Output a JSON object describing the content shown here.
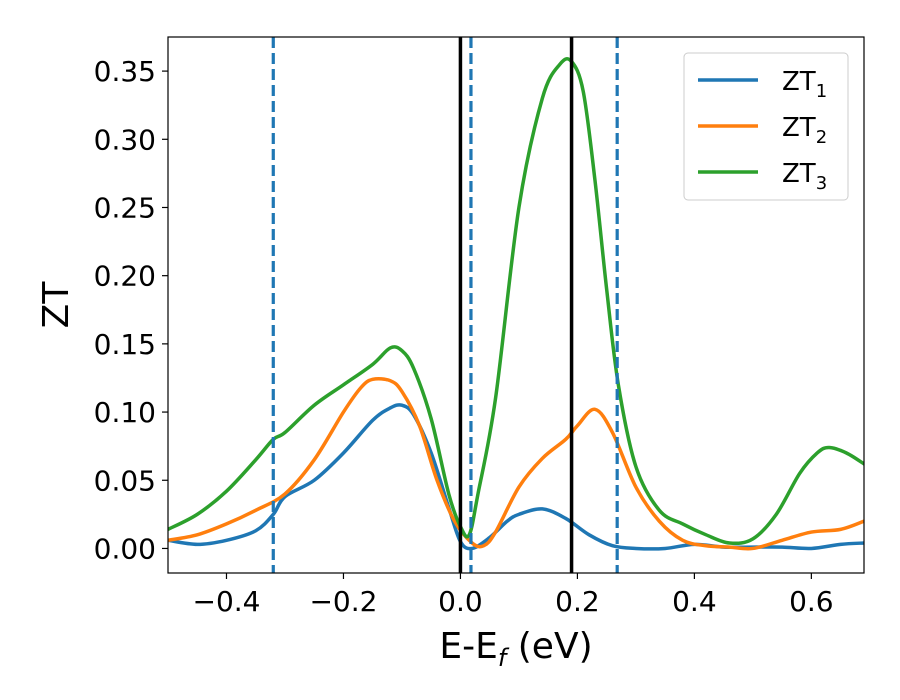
{
  "chart_data": {
    "type": "line",
    "title": "",
    "xlabel": {
      "base": "E-E",
      "sub": "f",
      "unit": " (eV)"
    },
    "ylabel": "ZT",
    "xlim": [
      -0.5,
      0.69
    ],
    "ylim": [
      -0.018,
      0.375
    ],
    "x_ticks": [
      -0.4,
      -0.2,
      0.0,
      0.2,
      0.4,
      0.6
    ],
    "x_tick_labels": [
      "−0.4",
      "−0.2",
      "0.0",
      "0.2",
      "0.4",
      "0.6"
    ],
    "y_ticks": [
      0.0,
      0.05,
      0.1,
      0.15,
      0.2,
      0.25,
      0.3,
      0.35
    ],
    "y_tick_labels": [
      "0.00",
      "0.05",
      "0.10",
      "0.15",
      "0.20",
      "0.25",
      "0.30",
      "0.35"
    ],
    "grid": false,
    "legend_position": "top-right",
    "series": [
      {
        "name": "ZT",
        "sub": "1",
        "color": "#1f77b4",
        "x": [
          -0.5,
          -0.45,
          -0.4,
          -0.35,
          -0.32,
          -0.3,
          -0.25,
          -0.2,
          -0.15,
          -0.12,
          -0.1,
          -0.08,
          -0.05,
          -0.02,
          0.0,
          0.02,
          0.05,
          0.08,
          0.1,
          0.14,
          0.18,
          0.22,
          0.26,
          0.3,
          0.35,
          0.4,
          0.45,
          0.5,
          0.55,
          0.6,
          0.65,
          0.69
        ],
        "y": [
          0.006,
          0.003,
          0.006,
          0.013,
          0.025,
          0.038,
          0.05,
          0.07,
          0.094,
          0.103,
          0.105,
          0.098,
          0.07,
          0.03,
          0.005,
          0.0,
          0.008,
          0.02,
          0.025,
          0.029,
          0.022,
          0.01,
          0.002,
          0.0,
          0.0,
          0.003,
          0.001,
          0.001,
          0.001,
          0.0,
          0.003,
          0.004
        ]
      },
      {
        "name": "ZT",
        "sub": "2",
        "color": "#ff7f0e",
        "x": [
          -0.5,
          -0.45,
          -0.4,
          -0.35,
          -0.3,
          -0.25,
          -0.2,
          -0.17,
          -0.15,
          -0.12,
          -0.1,
          -0.07,
          -0.04,
          -0.01,
          0.02,
          0.04,
          0.06,
          0.1,
          0.14,
          0.18,
          0.2,
          0.23,
          0.26,
          0.3,
          0.34,
          0.38,
          0.42,
          0.46,
          0.5,
          0.55,
          0.6,
          0.65,
          0.69
        ],
        "y": [
          0.006,
          0.01,
          0.018,
          0.028,
          0.04,
          0.065,
          0.1,
          0.118,
          0.124,
          0.123,
          0.115,
          0.09,
          0.05,
          0.02,
          0.004,
          0.002,
          0.012,
          0.045,
          0.066,
          0.08,
          0.09,
          0.102,
          0.085,
          0.045,
          0.02,
          0.006,
          0.002,
          0.001,
          0.0,
          0.006,
          0.012,
          0.014,
          0.02
        ]
      },
      {
        "name": "ZT",
        "sub": "3",
        "color": "#2ca02c",
        "x": [
          -0.5,
          -0.45,
          -0.4,
          -0.35,
          -0.32,
          -0.3,
          -0.25,
          -0.2,
          -0.15,
          -0.12,
          -0.1,
          -0.08,
          -0.05,
          -0.02,
          0.0,
          0.015,
          0.03,
          0.06,
          0.1,
          0.14,
          0.17,
          0.19,
          0.21,
          0.23,
          0.25,
          0.27,
          0.3,
          0.34,
          0.38,
          0.42,
          0.46,
          0.5,
          0.54,
          0.58,
          0.61,
          0.63,
          0.66,
          0.69
        ],
        "y": [
          0.014,
          0.025,
          0.042,
          0.065,
          0.08,
          0.085,
          0.105,
          0.12,
          0.135,
          0.147,
          0.145,
          0.132,
          0.095,
          0.04,
          0.016,
          0.01,
          0.04,
          0.11,
          0.25,
          0.33,
          0.355,
          0.357,
          0.335,
          0.27,
          0.19,
          0.12,
          0.06,
          0.028,
          0.018,
          0.01,
          0.004,
          0.007,
          0.025,
          0.055,
          0.07,
          0.074,
          0.07,
          0.062
        ]
      }
    ],
    "vlines": [
      {
        "x": -0.32,
        "style": "dashed",
        "color": "#1f77b4"
      },
      {
        "x": 0.0,
        "style": "solid",
        "color": "#000000"
      },
      {
        "x": 0.018,
        "style": "dashed",
        "color": "#1f77b4"
      },
      {
        "x": 0.19,
        "style": "solid",
        "color": "#000000"
      },
      {
        "x": 0.268,
        "style": "dashed",
        "color": "#1f77b4"
      }
    ]
  }
}
